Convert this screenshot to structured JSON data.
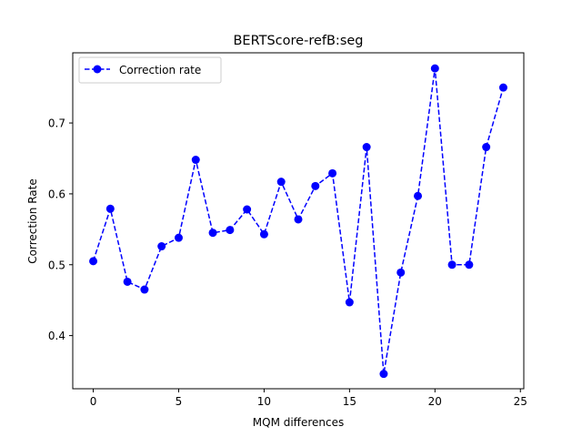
{
  "chart_data": {
    "type": "line",
    "title": "BERTScore-refB:seg",
    "xlabel": "MQM differences",
    "ylabel": "Correction Rate",
    "xlim": [
      -1.2,
      25.2
    ],
    "ylim": [
      0.325,
      0.799
    ],
    "xticks": [
      0,
      5,
      10,
      15,
      20,
      25
    ],
    "yticks": [
      0.4,
      0.5,
      0.6,
      0.7
    ],
    "ytick_labels": [
      "0.4",
      "0.5",
      "0.6",
      "0.7"
    ],
    "grid": false,
    "legend_position": "top-left",
    "series": [
      {
        "name": "Correction rate",
        "color": "#0000ff",
        "line_style": "dashed",
        "marker": "circle",
        "x": [
          0,
          1,
          2,
          3,
          4,
          5,
          6,
          7,
          8,
          9,
          10,
          11,
          12,
          13,
          14,
          15,
          16,
          17,
          18,
          19,
          20,
          21,
          22,
          23,
          24
        ],
        "y": [
          0.505,
          0.579,
          0.476,
          0.465,
          0.526,
          0.538,
          0.648,
          0.545,
          0.549,
          0.578,
          0.543,
          0.617,
          0.564,
          0.611,
          0.629,
          0.447,
          0.666,
          0.346,
          0.489,
          0.597,
          0.777,
          0.5,
          0.5,
          0.666,
          0.75
        ]
      }
    ]
  }
}
